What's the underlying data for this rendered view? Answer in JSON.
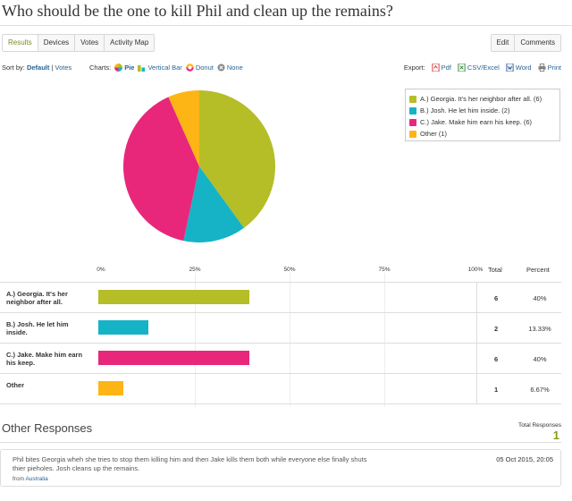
{
  "title": "Who should be the one to kill Phil and clean up the remains?",
  "tabs": [
    "Results",
    "Devices",
    "Votes",
    "Activity Map"
  ],
  "right_buttons": [
    "Edit",
    "Comments"
  ],
  "toolbar": {
    "sort_label": "Sort by:",
    "sort_default": "Default",
    "sort_sep": "|",
    "sort_votes": "Votes",
    "charts_label": "Charts:",
    "chart_options": [
      "Pie",
      "Vertical Bar",
      "Donut",
      "None"
    ],
    "chart_active": "Pie",
    "export_label": "Export:",
    "export_options": [
      "Pdf",
      "CSV/Excel",
      "Word",
      "Print"
    ]
  },
  "colors": {
    "a": "#b5bd27",
    "b": "#16b3c7",
    "c": "#e8277a",
    "other": "#fdb515"
  },
  "legend": [
    "A.) Georgia. It's her neighbor after all. (6)",
    "B.) Josh. He let him inside. (2)",
    "C.) Jake. Make him earn his keep. (6)",
    "Other (1)"
  ],
  "chart_data": {
    "type": "bar",
    "categories": [
      "A.) Georgia. It's her neighbor after all.",
      "B.) Josh. He let him inside.",
      "C.) Jake. Make him earn his keep.",
      "Other"
    ],
    "values": [
      6,
      2,
      6,
      1
    ],
    "percents": [
      "40%",
      "13.33%",
      "40%",
      "6.67%"
    ],
    "ticks": [
      "0%",
      "25%",
      "50%",
      "75%",
      "100%"
    ],
    "ylim": [
      0,
      100
    ]
  },
  "table": {
    "col_total": "Total",
    "col_percent": "Percent"
  },
  "other_responses": {
    "title": "Other Responses",
    "total_label": "Total Responses",
    "total_count": "1",
    "items": [
      {
        "text": "Phil bites Georgia wheh she tries to stop them killing him and then Jake kills them both while everyone else finally shuts thier pieholes. Josh cleans up the remains.",
        "date": "05 Oct 2015, 20:05",
        "from_label": "from",
        "from_place": "Australia"
      }
    ]
  }
}
